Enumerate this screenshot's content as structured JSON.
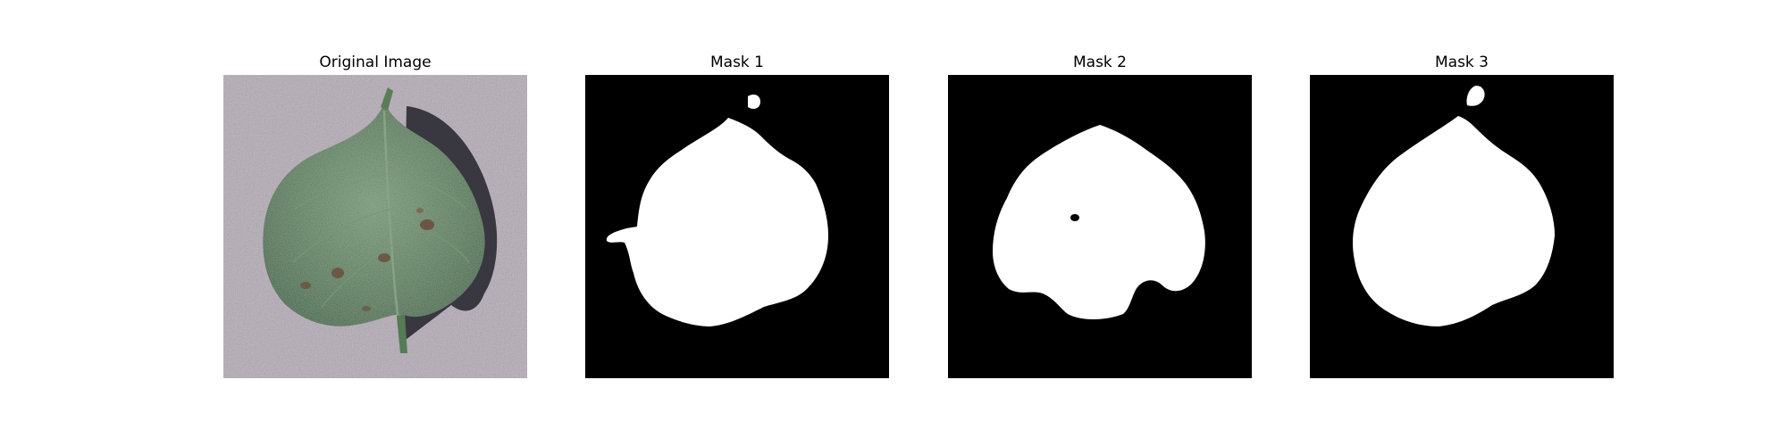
{
  "panels": [
    {
      "title": "Original Image"
    },
    {
      "title": "Mask 1"
    },
    {
      "title": "Mask 2"
    },
    {
      "title": "Mask 3"
    }
  ],
  "colors": {
    "background": "#ffffff",
    "mask_background": "#000000",
    "mask_foreground": "#ffffff",
    "surface": "#b3a8b5",
    "leaf": "#4e6e4f",
    "leaf_shadow": "#2b2a33",
    "lesion": "#6b4a3a"
  }
}
